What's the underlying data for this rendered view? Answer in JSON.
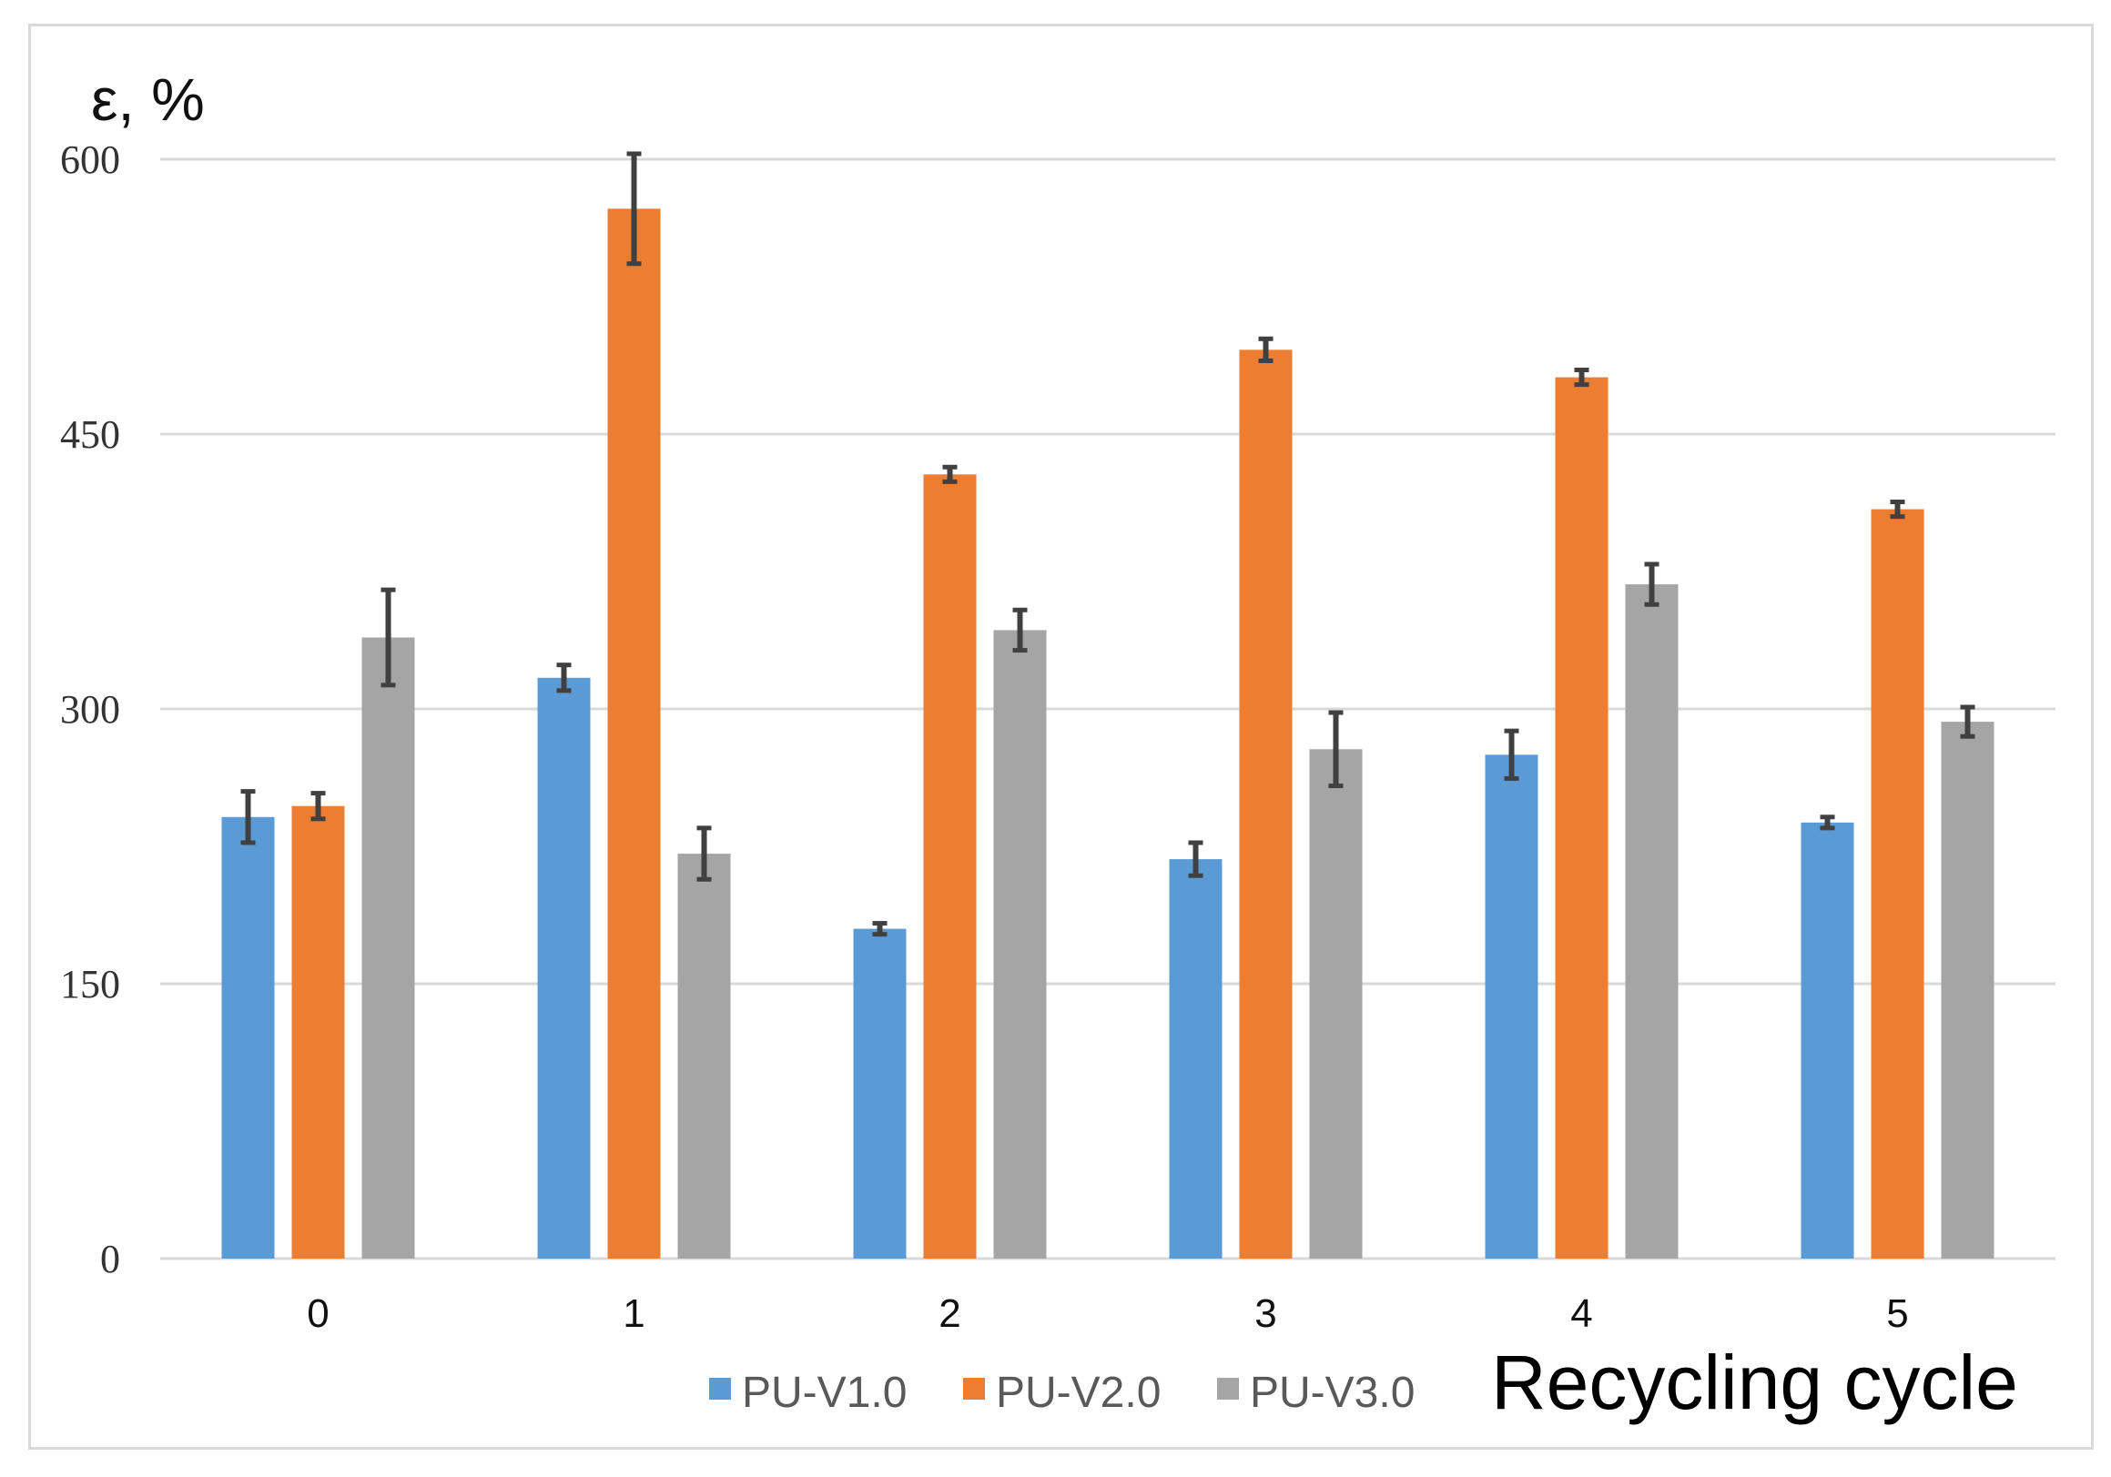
{
  "chart_data": {
    "type": "bar",
    "title": "",
    "ylabel": "ε, %",
    "xlabel": "Recycling cycle",
    "categories": [
      "0",
      "1",
      "2",
      "3",
      "4",
      "5"
    ],
    "ylim": [
      0,
      600
    ],
    "yticks": [
      "0",
      "150",
      "300",
      "450",
      "600"
    ],
    "grid": true,
    "legend_position": "bottom",
    "series": [
      {
        "name": "PU-V1.0",
        "color": "#5B9BD5",
        "values": [
          241,
          317,
          180,
          218,
          275,
          238
        ],
        "errors": [
          14,
          7,
          3,
          9,
          13,
          3
        ]
      },
      {
        "name": "PU-V2.0",
        "color": "#ED7D31",
        "values": [
          247,
          573,
          428,
          496,
          481,
          409
        ],
        "errors": [
          7,
          30,
          4,
          6,
          4,
          4
        ]
      },
      {
        "name": "PU-V3.0",
        "color": "#A5A5A5",
        "values": [
          339,
          221,
          343,
          278,
          368,
          293
        ],
        "errors": [
          26,
          14,
          11,
          20,
          11,
          8
        ]
      }
    ],
    "error_bar_color": "#404040",
    "grid_color": "#d9d9d9"
  }
}
